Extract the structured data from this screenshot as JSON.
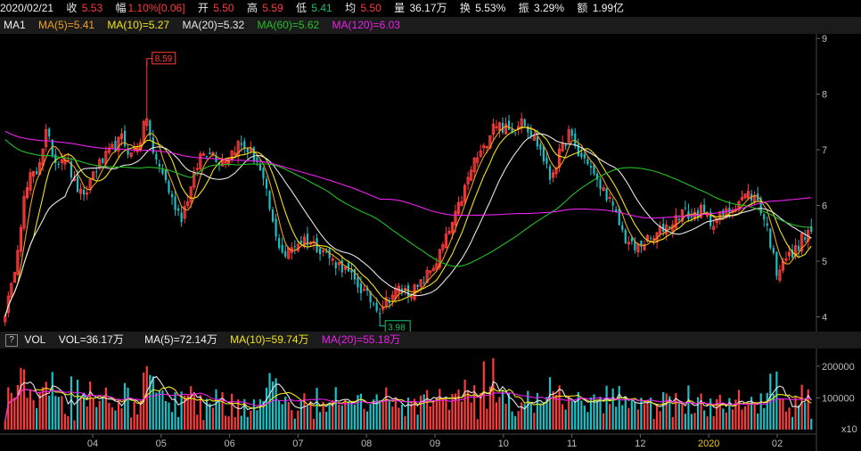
{
  "quote": {
    "date": "2020/02/21",
    "close_label": "收",
    "close": "5.53",
    "change_label": "幅",
    "change": "1.10%[0.06]",
    "open_label": "开",
    "open": "5.50",
    "high_label": "高",
    "high": "5.59",
    "low_label": "低",
    "low": "5.41",
    "avg_label": "均",
    "avg": "5.50",
    "volume_label": "量",
    "volume": "36.17万",
    "turnover_label": "换",
    "turnover": "5.53%",
    "amplitude_label": "振",
    "amplitude": "3.29%",
    "amount_label": "额",
    "amount": "1.99亿"
  },
  "ma_legend": {
    "name": "MA1",
    "ma5": "MA(5)=5.41",
    "ma10": "MA(10)=5.27",
    "ma20": "MA(20)=5.32",
    "ma60": "MA(60)=5.62",
    "ma120": "MA(120)=6.03"
  },
  "vol_legend": {
    "help_icon": "?",
    "name": "VOL",
    "vol": "VOL=36.17万",
    "ma5": "MA(5)=72.14万",
    "ma10": "MA(10)=59.74万",
    "ma20": "MA(20)=55.18万"
  },
  "colors": {
    "up": "#ff3b3b",
    "down": "#19c2c8",
    "ma5": "#f0a020",
    "ma10": "#f2e318",
    "ma20": "#e6e6e6",
    "ma60": "#22c022",
    "ma120": "#ee20ee"
  },
  "chart_data": {
    "type": "candlestick",
    "price_axis": {
      "ticks": [
        "9",
        "8",
        "7",
        "6",
        "5",
        "4"
      ],
      "ylim": [
        3.8,
        9.05
      ]
    },
    "volume_axis": {
      "ticks": [
        "200000",
        "100000"
      ],
      "unit": "x10",
      "ylim": [
        0,
        250000
      ]
    },
    "month_labels": [
      "04",
      "05",
      "06",
      "07",
      "08",
      "09",
      "10",
      "11",
      "12",
      "2020",
      "02"
    ],
    "annotations": {
      "high": "8.59",
      "low": "3.98"
    },
    "price_keypoints": [
      [
        0,
        4.1
      ],
      [
        2,
        4.5
      ],
      [
        4,
        5.3
      ],
      [
        6,
        6.1
      ],
      [
        8,
        6.5
      ],
      [
        10,
        6.6
      ],
      [
        13,
        7.3
      ],
      [
        16,
        6.8
      ],
      [
        19,
        6.9
      ],
      [
        22,
        6.4
      ],
      [
        25,
        6.1
      ],
      [
        28,
        6.6
      ],
      [
        31,
        6.8
      ],
      [
        34,
        7.0
      ],
      [
        37,
        7.2
      ],
      [
        40,
        6.9
      ],
      [
        43,
        7.2
      ],
      [
        45,
        7.6
      ],
      [
        47,
        6.9
      ],
      [
        50,
        6.6
      ],
      [
        53,
        6.1
      ],
      [
        56,
        5.8
      ],
      [
        59,
        6.3
      ],
      [
        62,
        6.9
      ],
      [
        65,
        7.0
      ],
      [
        68,
        6.8
      ],
      [
        71,
        6.9
      ],
      [
        74,
        7.1
      ],
      [
        77,
        7.0
      ],
      [
        80,
        6.8
      ],
      [
        83,
        6.2
      ],
      [
        86,
        5.4
      ],
      [
        89,
        5.1
      ],
      [
        92,
        5.3
      ],
      [
        95,
        5.4
      ],
      [
        98,
        5.3
      ],
      [
        101,
        5.2
      ],
      [
        104,
        5.0
      ],
      [
        107,
        4.9
      ],
      [
        110,
        4.7
      ],
      [
        113,
        4.5
      ],
      [
        116,
        4.3
      ],
      [
        119,
        4.15
      ],
      [
        122,
        4.35
      ],
      [
        125,
        4.5
      ],
      [
        128,
        4.45
      ],
      [
        131,
        4.5
      ],
      [
        134,
        4.75
      ],
      [
        137,
        5.0
      ],
      [
        140,
        5.4
      ],
      [
        143,
        5.8
      ],
      [
        146,
        6.3
      ],
      [
        149,
        6.8
      ],
      [
        152,
        7.0
      ],
      [
        155,
        7.5
      ],
      [
        158,
        7.4
      ],
      [
        161,
        7.3
      ],
      [
        164,
        7.6
      ],
      [
        167,
        7.3
      ],
      [
        170,
        7.0
      ],
      [
        173,
        6.5
      ],
      [
        176,
        6.9
      ],
      [
        179,
        7.3
      ],
      [
        182,
        6.9
      ],
      [
        185,
        6.8
      ],
      [
        188,
        6.4
      ],
      [
        191,
        6.2
      ],
      [
        194,
        5.8
      ],
      [
        197,
        5.4
      ],
      [
        200,
        5.2
      ],
      [
        203,
        5.35
      ],
      [
        206,
        5.4
      ],
      [
        209,
        5.6
      ],
      [
        212,
        5.7
      ],
      [
        215,
        5.9
      ],
      [
        218,
        5.8
      ],
      [
        221,
        5.9
      ],
      [
        224,
        5.7
      ],
      [
        227,
        5.8
      ],
      [
        230,
        5.9
      ],
      [
        233,
        6.1
      ],
      [
        236,
        6.2
      ],
      [
        239,
        6.1
      ],
      [
        242,
        5.6
      ],
      [
        245,
        4.8
      ],
      [
        247,
        5.05
      ],
      [
        250,
        5.1
      ],
      [
        253,
        5.4
      ],
      [
        256,
        5.53
      ]
    ]
  }
}
